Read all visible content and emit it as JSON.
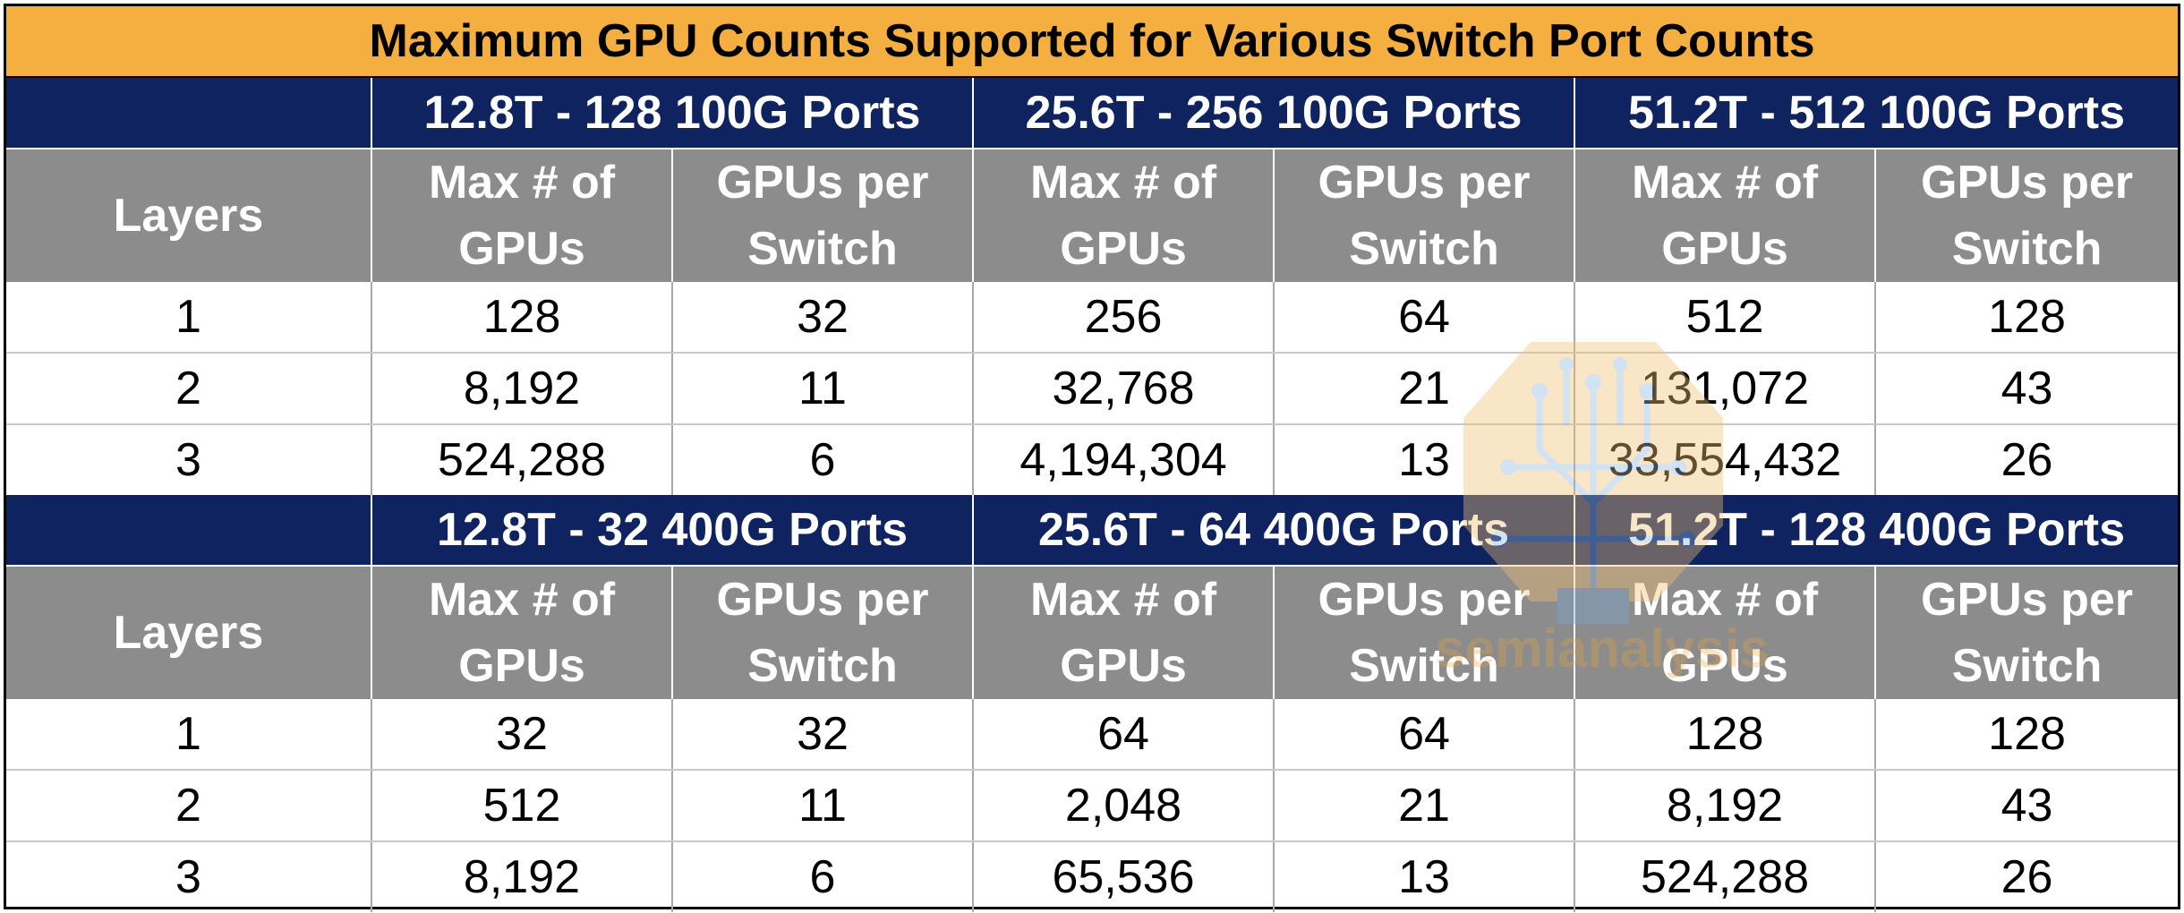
{
  "title": "Maximum GPU Counts Supported for Various Switch Port Counts",
  "colors": {
    "title_bg": "#F5AF40",
    "band_bg": "#0E2360",
    "header_bg": "#8C8C8C"
  },
  "watermark": {
    "text": "semianalysis",
    "icon": "circuit-tree-logo"
  },
  "blocks": [
    {
      "groups": [
        "12.8T - 128 100G Ports",
        "25.6T -  256 100G Ports",
        "51.2T - 512 100G Ports"
      ],
      "header": {
        "layers": "Layers",
        "max_line1": "Max # of",
        "max_line2": "GPUs",
        "per_line1": "GPUs per",
        "per_line2": "Switch"
      },
      "rows": [
        [
          "1",
          "128",
          "32",
          "256",
          "64",
          "512",
          "128"
        ],
        [
          "2",
          "8,192",
          "11",
          "32,768",
          "21",
          "131,072",
          "43"
        ],
        [
          "3",
          "524,288",
          "6",
          "4,194,304",
          "13",
          "33,554,432",
          "26"
        ]
      ]
    },
    {
      "groups": [
        "12.8T - 32 400G Ports",
        "25.6T -  64 400G Ports",
        "51.2T - 128 400G Ports"
      ],
      "header": {
        "layers": "Layers",
        "max_line1": "Max # of",
        "max_line2": "GPUs",
        "per_line1": "GPUs per",
        "per_line2": "Switch"
      },
      "rows": [
        [
          "1",
          "32",
          "32",
          "64",
          "64",
          "128",
          "128"
        ],
        [
          "2",
          "512",
          "11",
          "2,048",
          "21",
          "8,192",
          "43"
        ],
        [
          "3",
          "8,192",
          "6",
          "65,536",
          "13",
          "524,288",
          "26"
        ]
      ]
    }
  ]
}
